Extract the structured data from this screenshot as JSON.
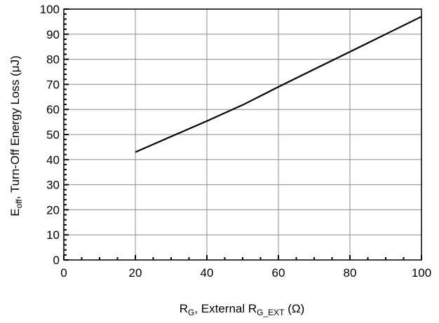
{
  "chart_data": {
    "type": "line",
    "xlabel": {
      "main": "R",
      "sub": "G",
      "rest": ", External R",
      "sub2": "G_EXT",
      "tail": " (Ω)"
    },
    "ylabel": {
      "main": "E",
      "sub": "off",
      "rest": ", Turn-Off Energy Loss (μJ)"
    },
    "xlim": [
      0,
      100
    ],
    "ylim": [
      0,
      100
    ],
    "x_ticks": [
      0,
      20,
      40,
      60,
      80,
      100
    ],
    "y_ticks": [
      0,
      10,
      20,
      30,
      40,
      50,
      60,
      70,
      80,
      90,
      100
    ],
    "grid": true,
    "series": [
      {
        "x": [
          20,
          30,
          40,
          50,
          60,
          70,
          80,
          90,
          100
        ],
        "y": [
          43,
          49.2,
          55.4,
          61.8,
          69,
          76,
          83,
          90,
          97
        ]
      }
    ]
  }
}
